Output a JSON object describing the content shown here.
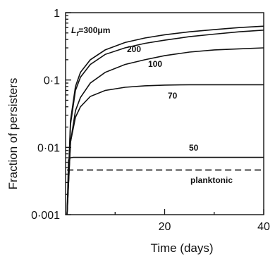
{
  "chart_data": {
    "type": "line",
    "xlabel": "Time (days)",
    "ylabel": "Fraction of persisters",
    "xlim": [
      0,
      40
    ],
    "ylim": [
      0.001,
      1
    ],
    "yscale": "log",
    "grid": false,
    "x_ticks": [
      {
        "value": 20,
        "label": "20"
      },
      {
        "value": 40,
        "label": "40"
      }
    ],
    "y_ticks": [
      {
        "value": 1,
        "label": "1"
      },
      {
        "value": 0.1,
        "label": "0·1"
      },
      {
        "value": 0.01,
        "label": "0·01"
      },
      {
        "value": 0.001,
        "label": "0·001"
      }
    ],
    "series": [
      {
        "name": "L_f=300μm",
        "label_prefix": "L",
        "label_sub": "f",
        "label_suffix": "=300μm",
        "style": "solid",
        "x": [
          0.3,
          1,
          2,
          3,
          5,
          8,
          12,
          16,
          20,
          25,
          30,
          35,
          40
        ],
        "y": [
          0.001,
          0.025,
          0.08,
          0.13,
          0.2,
          0.28,
          0.36,
          0.42,
          0.47,
          0.52,
          0.56,
          0.6,
          0.63
        ]
      },
      {
        "name": "200",
        "label": "200",
        "style": "solid",
        "x": [
          0.3,
          1,
          2,
          3,
          5,
          8,
          12,
          16,
          20,
          25,
          30,
          35,
          40
        ],
        "y": [
          0.001,
          0.022,
          0.07,
          0.11,
          0.17,
          0.24,
          0.3,
          0.35,
          0.39,
          0.44,
          0.48,
          0.52,
          0.55
        ]
      },
      {
        "name": "100",
        "label": "100",
        "style": "solid",
        "x": [
          0.3,
          1,
          2,
          3,
          5,
          8,
          12,
          16,
          20,
          25,
          30,
          35,
          40
        ],
        "y": [
          0.001,
          0.012,
          0.035,
          0.055,
          0.09,
          0.13,
          0.17,
          0.2,
          0.23,
          0.26,
          0.28,
          0.29,
          0.3
        ]
      },
      {
        "name": "70",
        "label": "70",
        "style": "solid",
        "x": [
          0.3,
          1,
          2,
          3,
          5,
          8,
          12,
          16,
          20,
          25,
          30,
          35,
          40
        ],
        "y": [
          0.001,
          0.012,
          0.028,
          0.04,
          0.057,
          0.07,
          0.078,
          0.082,
          0.084,
          0.085,
          0.085,
          0.085,
          0.085
        ]
      },
      {
        "name": "50",
        "label": "50",
        "style": "solid",
        "x": [
          0.3,
          0.6,
          1,
          1.5,
          40
        ],
        "y": [
          0.001,
          0.0065,
          0.007,
          0.0071,
          0.0071
        ]
      },
      {
        "name": "planktonic",
        "label": "planktonic",
        "style": "dashed",
        "x": [
          0.3,
          1,
          40
        ],
        "y": [
          0.0046,
          0.0046,
          0.0046
        ]
      }
    ]
  }
}
